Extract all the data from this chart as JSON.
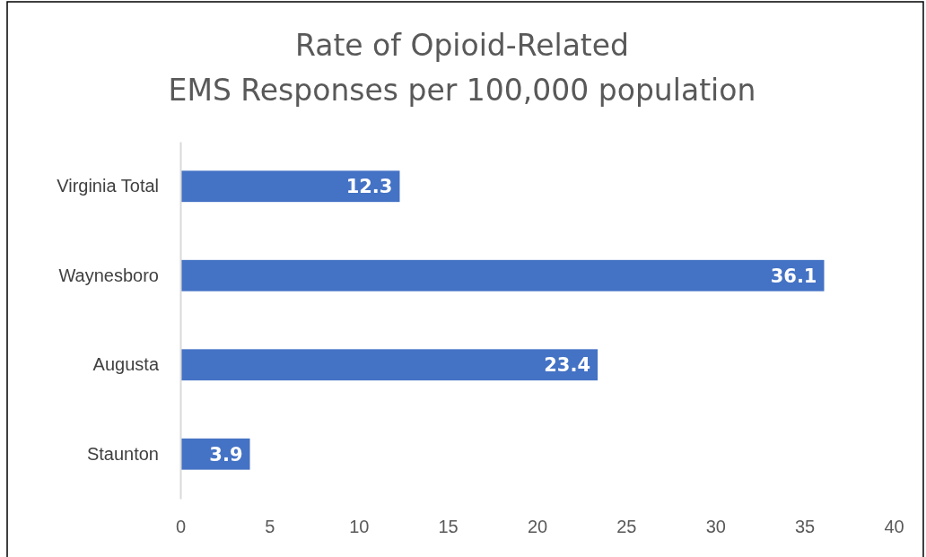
{
  "chart_data": {
    "type": "bar",
    "orientation": "horizontal",
    "title": "Rate of Opioid-Related\nEMS Responses per 100,000 population",
    "categories": [
      "Virginia Total",
      "Waynesboro",
      "Augusta",
      "Staunton"
    ],
    "values": [
      12.3,
      36.1,
      23.4,
      3.9
    ],
    "color": "#4472c4",
    "xlim": [
      0,
      40
    ],
    "xticks": [
      0,
      5,
      10,
      15,
      20,
      25,
      30,
      35,
      40
    ],
    "grid": false,
    "data_labels": true
  }
}
